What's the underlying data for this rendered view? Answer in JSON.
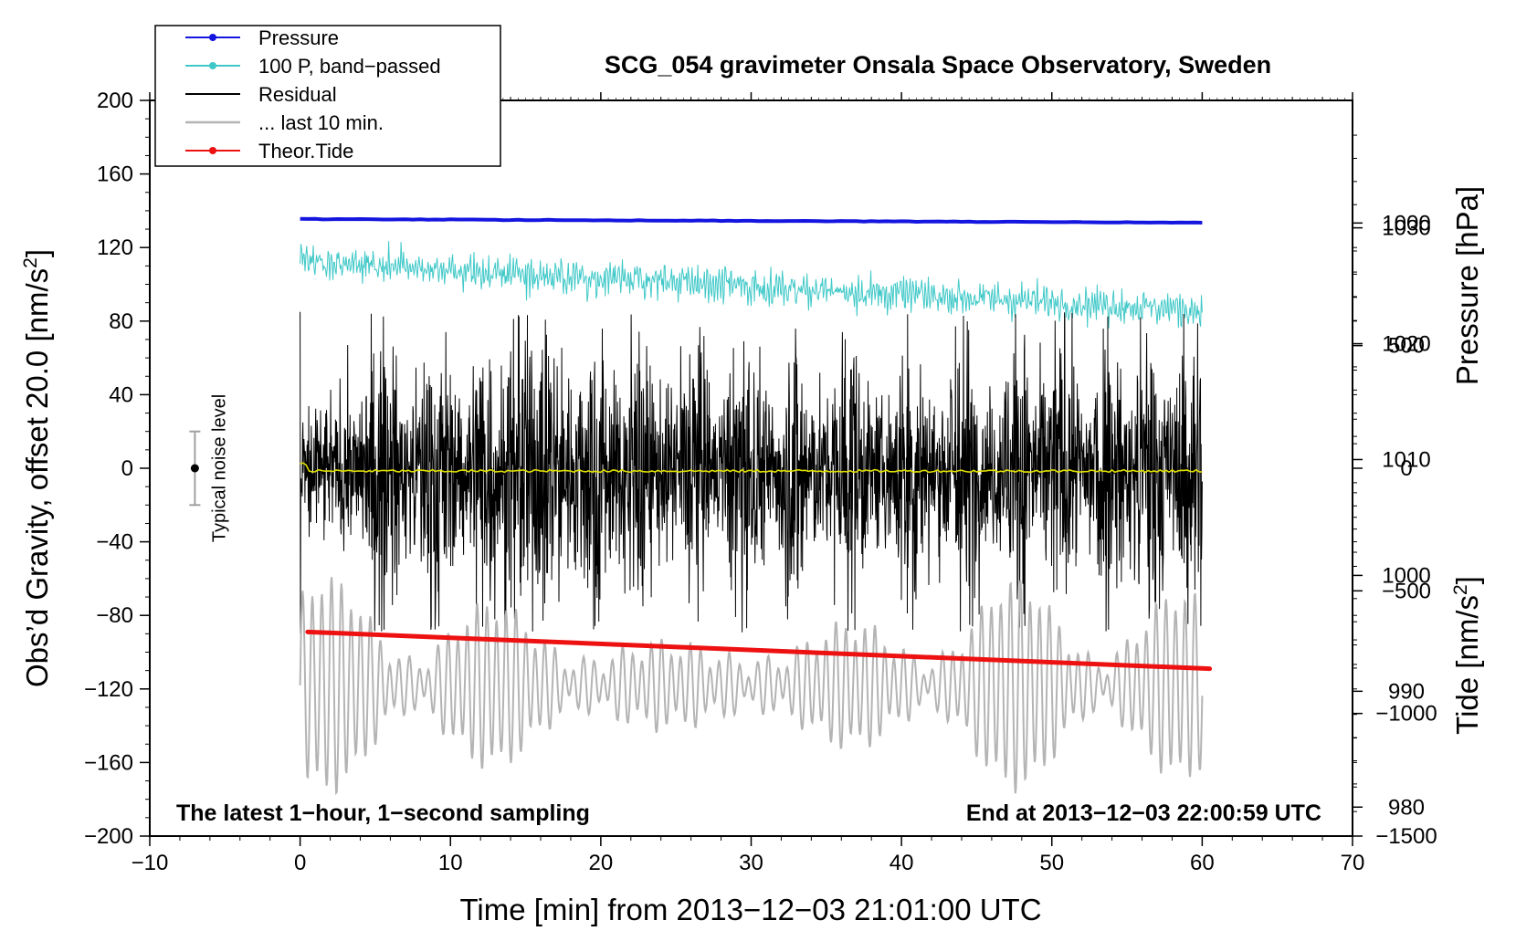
{
  "chart_data": {
    "type": "line",
    "title": "SCG_054 gravimeter Onsala Space Observatory, Sweden",
    "xlabel": "Time [min] from 2013−12−03 21:01:00 UTC",
    "ylabel_left_prefix": "Obs’d Gravity, offset 20.0 [nm/s",
    "ylabel_left_sup": "2",
    "ylabel_left_suffix": "]",
    "ylabel_pressure": "Pressure [hPa]",
    "ylabel_tide_prefix": "Tide [nm/s",
    "ylabel_tide_sup": "2",
    "ylabel_tide_suffix": "]",
    "xlim": [
      -10,
      70
    ],
    "ylim": [
      -200,
      200
    ],
    "pressure_lim": [
      977.5,
      1041
    ],
    "tide_lim": [
      -1500,
      1500
    ],
    "x_ticks": [
      -10,
      0,
      10,
      20,
      30,
      40,
      50,
      60,
      70
    ],
    "x_tick_labels": [
      "−10",
      "0",
      "10",
      "20",
      "30",
      "40",
      "50",
      "60",
      "70"
    ],
    "y_ticks": [
      -200,
      -160,
      -120,
      -80,
      -40,
      0,
      40,
      80,
      120,
      160,
      200
    ],
    "y_tick_labels": [
      "−200",
      "−160",
      "−120",
      "−80",
      "−40",
      "0",
      "40",
      "80",
      "120",
      "160",
      "200"
    ],
    "pressure_ticks": [
      980,
      990,
      1000,
      1010,
      1020,
      1030
    ],
    "pressure_tick_labels": [
      "980",
      "990",
      "1000",
      "1010",
      "1020",
      "1030"
    ],
    "tide_ticks": [
      -1500,
      -1000,
      -500,
      0,
      500,
      1000
    ],
    "tide_tick_labels": [
      "−1500",
      "−1000",
      "−500",
      "0",
      "500",
      "1000"
    ],
    "legend": {
      "placement": "top-left",
      "entries": [
        {
          "label": "Pressure",
          "color": "#1515e0",
          "marker": true
        },
        {
          "label": "100 P, band−passed",
          "color": "#40c8c8",
          "marker": true
        },
        {
          "label": "Residual",
          "color": "#000000",
          "marker": false
        },
        {
          "label": "... last 10 min.",
          "color": "#b4b4b4",
          "marker": false
        },
        {
          "label": "Theor.Tide",
          "color": "#ee1111",
          "marker": true
        }
      ]
    },
    "annotations": {
      "bottom_left": "The latest 1−hour, 1−second sampling",
      "bottom_right": "End at 2013−12−03 22:00:59 UTC",
      "noise_label": "Typical noise level",
      "noise_bar": {
        "x": -7,
        "center": 0,
        "half_range": 20
      }
    },
    "series": [
      {
        "name": "Pressure",
        "color": "#1515e0",
        "x_start": 0,
        "x_end": 60,
        "y_start": 135.5,
        "y_end": 133.5,
        "axis": "left"
      },
      {
        "name": "100 P, band−passed",
        "color": "#40c8c8",
        "x_start": 0,
        "x_end": 60,
        "mean_start": 112,
        "mean_end": 86,
        "amplitude": 7,
        "axis": "left"
      },
      {
        "name": "Residual",
        "color": "#000000",
        "x_start": 0,
        "x_end": 60,
        "mean": -2,
        "typical_amplitude": 35,
        "max": 85,
        "min": -90,
        "axis": "left"
      },
      {
        "name": "Residual (smoothed)",
        "color": "#e0e000",
        "x_start": 0,
        "x_end": 60,
        "y": -1.5,
        "axis": "left"
      },
      {
        "name": "... last 10 min.",
        "color": "#b4b4b4",
        "x_start": 0,
        "x_end": 60,
        "mean": -118,
        "amplitude_min": 10,
        "amplitude_max": 55,
        "axis": "left"
      },
      {
        "name": "Theor.Tide",
        "color": "#ee1111",
        "x_start": 0.5,
        "x_end": 60.5,
        "y_start": -89,
        "y_end": -109,
        "axis": "left"
      }
    ]
  }
}
